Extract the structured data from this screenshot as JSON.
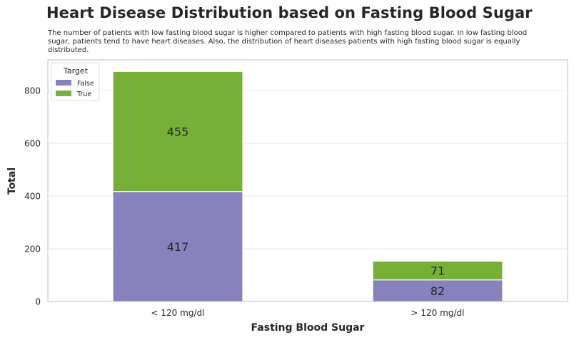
{
  "chart_data": {
    "type": "bar",
    "stacked": true,
    "title": "Heart Disease Distribution based on Fasting Blood Sugar",
    "subtitle": "The number of patients with low fasting blood sugar is higher compared to patients with high fasting blood sugar. In low fasting blood sugar, patients tend to have heart diseases. Also, the distribution of heart diseases patients with high fasting blood sugar is equally distributed.",
    "xlabel": "Fasting Blood Sugar",
    "ylabel": "Total",
    "categories": [
      "< 120 mg/dl",
      "> 120 mg/dl"
    ],
    "series": [
      {
        "name": "False",
        "values": [
          417,
          82
        ],
        "color": "#8781bd"
      },
      {
        "name": "True",
        "values": [
          455,
          71
        ],
        "color": "#77b037"
      }
    ],
    "ylim": [
      0,
      916
    ],
    "yticks": [
      0,
      200,
      400,
      600,
      800
    ],
    "grid": true,
    "legend": {
      "title": "Target",
      "position": "top-left"
    }
  }
}
